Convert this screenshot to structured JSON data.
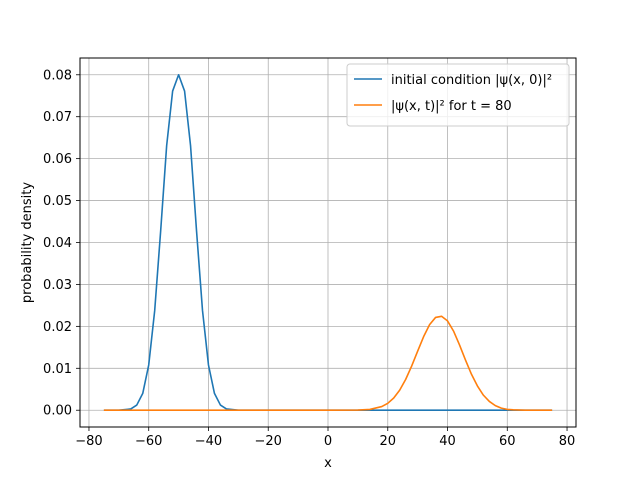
{
  "chart_data": {
    "type": "line",
    "xlabel": "x",
    "ylabel": "probability density",
    "xlim": [
      -83,
      83
    ],
    "ylim": [
      -0.004,
      0.084
    ],
    "xticks": [
      -80,
      -60,
      -40,
      -20,
      0,
      20,
      40,
      60,
      80
    ],
    "xtick_labels": [
      "−80",
      "−60",
      "−40",
      "−20",
      "0",
      "20",
      "40",
      "60",
      "80"
    ],
    "yticks": [
      0.0,
      0.01,
      0.02,
      0.03,
      0.04,
      0.05,
      0.06,
      0.07,
      0.08
    ],
    "ytick_labels": [
      "0.00",
      "0.01",
      "0.02",
      "0.03",
      "0.04",
      "0.05",
      "0.06",
      "0.07",
      "0.08"
    ],
    "grid": true,
    "legend_position": "top-right",
    "series": [
      {
        "name": "initial condition |ψ(x, 0)|²",
        "color": "#1f77b4",
        "x": [
          -75,
          -70,
          -66,
          -64,
          -62,
          -60,
          -58,
          -56,
          -54,
          -52,
          -50,
          -48,
          -46,
          -44,
          -42,
          -40,
          -38,
          -36,
          -34,
          -30,
          -20,
          0,
          20,
          40,
          60,
          75
        ],
        "y": [
          0.0,
          0.0,
          0.0003,
          0.00123,
          0.00401,
          0.01079,
          0.02376,
          0.0428,
          0.06309,
          0.07611,
          0.08,
          0.07611,
          0.06309,
          0.0428,
          0.02376,
          0.01079,
          0.00401,
          0.00123,
          0.0003,
          0.0,
          0.0,
          0.0,
          0.0,
          0.0,
          0.0,
          0.0
        ]
      },
      {
        "name": "|ψ(x, t)|² for t = 80",
        "color": "#ff7f0e",
        "x": [
          -75,
          -40,
          0,
          10,
          14,
          18,
          20,
          22,
          24,
          26,
          28,
          30,
          32,
          34,
          36,
          38,
          40,
          42,
          44,
          46,
          48,
          50,
          52,
          54,
          56,
          58,
          60,
          62,
          66,
          75
        ],
        "y": [
          0.0,
          0.0,
          0.0,
          3e-05,
          0.00019,
          0.00087,
          0.00165,
          0.00291,
          0.00479,
          0.00736,
          0.01054,
          0.01408,
          0.01755,
          0.02041,
          0.02213,
          0.0224,
          0.0213,
          0.0189,
          0.0156,
          0.012,
          0.0086,
          0.0058,
          0.0036,
          0.0021,
          0.0011,
          0.0005,
          0.0002,
          0.0001,
          0.0,
          0.0
        ]
      }
    ]
  }
}
